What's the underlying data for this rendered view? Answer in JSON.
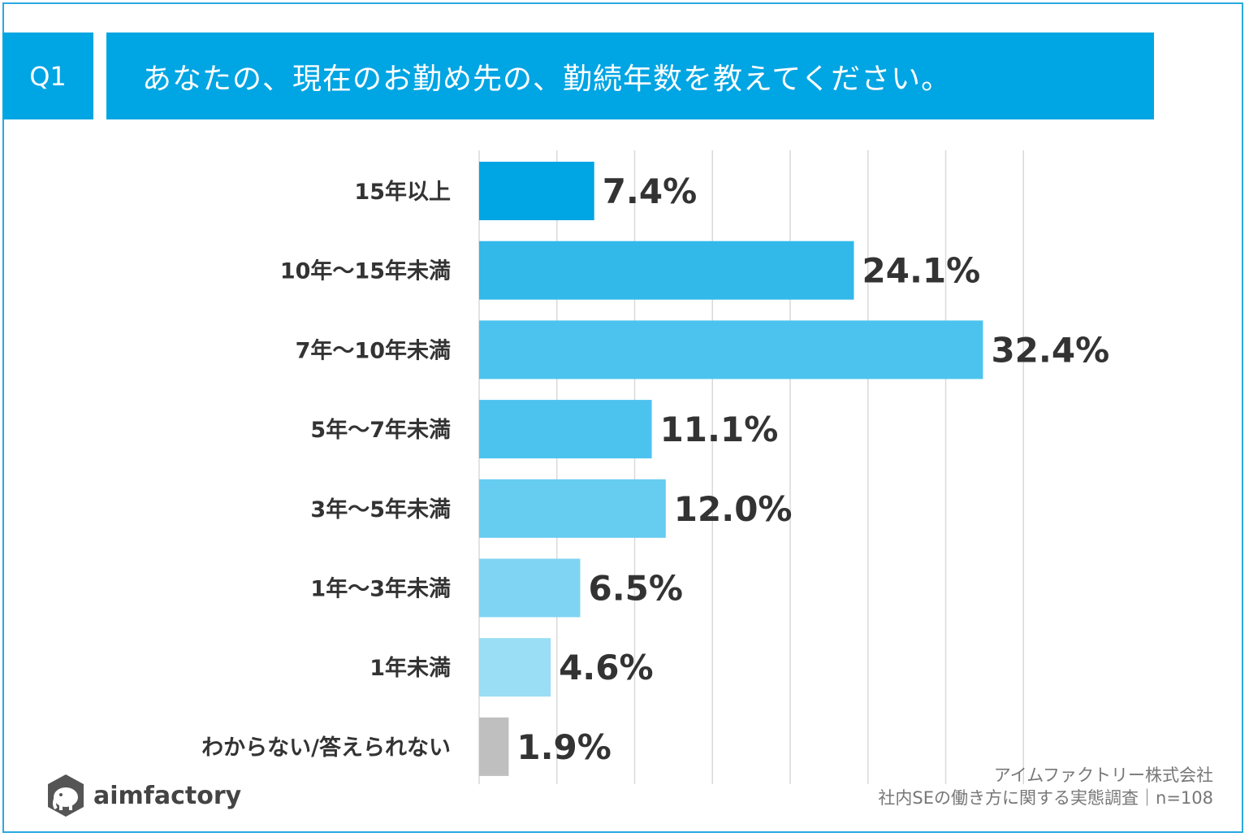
{
  "header": {
    "badge": "Q1",
    "question": "あなたの、現在のお勤め先の、勤続年数を教えてください。"
  },
  "chart_data": {
    "type": "bar",
    "orientation": "horizontal",
    "title": "あなたの、現在のお勤め先の、勤続年数を教えてください。",
    "categories": [
      "15年以上",
      "10年〜15年未満",
      "7年〜10年未満",
      "5年〜7年未満",
      "3年〜5年未満",
      "1年〜3年未満",
      "1年未満",
      "わからない/答えられない"
    ],
    "values": [
      7.4,
      24.1,
      32.4,
      11.1,
      12.0,
      6.5,
      4.6,
      1.9
    ],
    "value_labels": [
      "7.4%",
      "24.1%",
      "32.4%",
      "11.1%",
      "12.0%",
      "6.5%",
      "4.6%",
      "1.9%"
    ],
    "bar_colors": [
      "#00a5e3",
      "#33b8ea",
      "#4cc3ee",
      "#4cc3ee",
      "#66ccf0",
      "#80d4f3",
      "#99def5",
      "#bfbfbf"
    ],
    "xlim": [
      0,
      35
    ],
    "grid_step": 5,
    "grid": true,
    "xlabel": "",
    "ylabel": ""
  },
  "footer": {
    "source_line1": "アイムファクトリー株式会社",
    "source_line2": "社内SEの働き方に関する実態調査｜n=108",
    "logo_text": "aimfactory"
  },
  "colors": {
    "accent": "#00a5e3",
    "frame": "#2aa9e0",
    "text": "#333333"
  }
}
